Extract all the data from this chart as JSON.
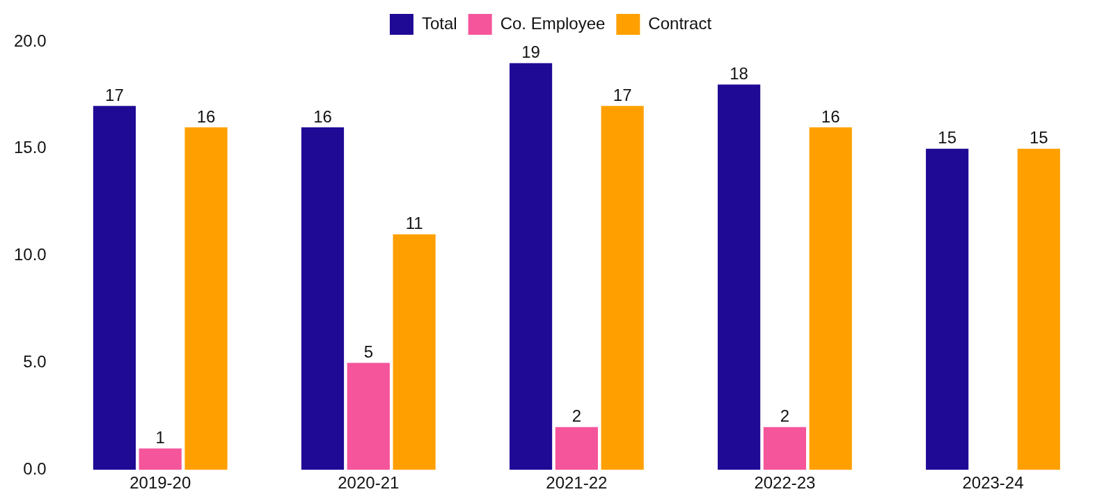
{
  "chart_data": {
    "type": "bar",
    "categories": [
      "2019-20",
      "2020-21",
      "2021-22",
      "2022-23",
      "2023-24"
    ],
    "series": [
      {
        "name": "Total",
        "color": "#1f0a96",
        "values": [
          17,
          16,
          19,
          18,
          15
        ]
      },
      {
        "name": "Co. Employee",
        "color": "#f5559a",
        "values": [
          1,
          5,
          2,
          2,
          null
        ]
      },
      {
        "name": "Contract",
        "color": "#ffa000",
        "values": [
          16,
          11,
          17,
          16,
          15
        ]
      }
    ],
    "ylim": [
      0,
      20
    ],
    "yticks": [
      {
        "value": 0,
        "label": "0.0"
      },
      {
        "value": 5,
        "label": "5.0"
      },
      {
        "value": 10,
        "label": "10.0"
      },
      {
        "value": 15,
        "label": "15.0"
      },
      {
        "value": 20,
        "label": "20.0"
      }
    ],
    "grid": false,
    "legend": "top",
    "data_labels": true
  }
}
